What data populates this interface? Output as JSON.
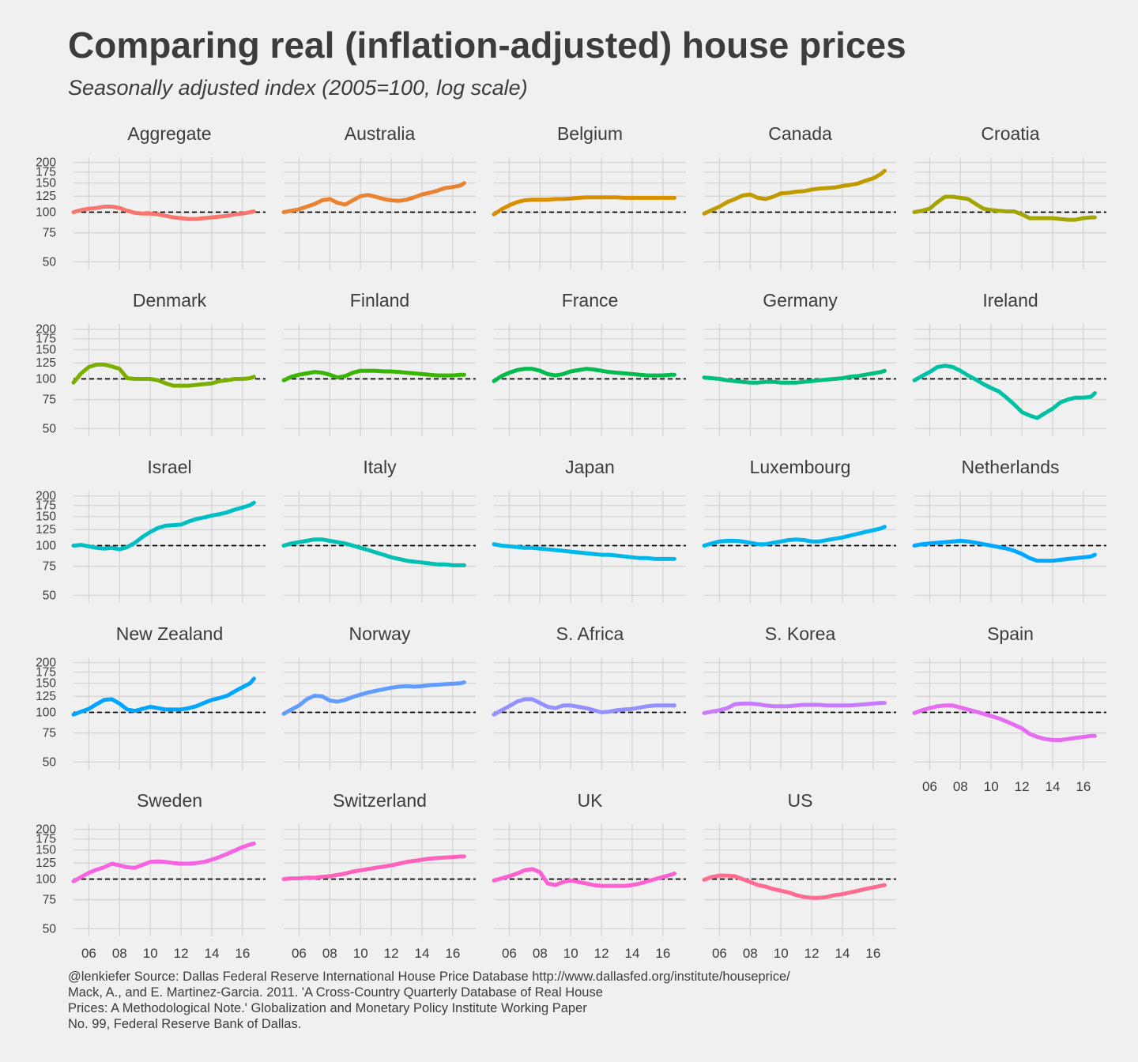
{
  "title": "Comparing real (inflation-adjusted) house prices",
  "subtitle": "Seasonally adjusted index (2005=100, log scale)",
  "caption_lines": [
    "@lenkiefer Source: Dallas Federal Reserve International House Price Database  http://www.dallasfed.org/institute/houseprice/",
    "Mack, A., and E. Martinez-Garcia. 2011. 'A Cross-Country Quarterly Database of Real House",
    "Prices: A Methodological Note.' Globalization and Monetary Policy Institute Working Paper",
    "No. 99, Federal Reserve Bank of Dallas."
  ],
  "colors": {
    "background": "#f0f0f0",
    "grid": "#d2d2d2",
    "text": "#3c3c3c",
    "reference_line": "#000000"
  },
  "chart_data": {
    "type": "line",
    "facet_layout": "5 columns x 5 rows",
    "y_scale": "log",
    "ylim": [
      45,
      215
    ],
    "y_ticks": [
      50,
      75,
      100,
      125,
      150,
      175,
      200
    ],
    "y_tick_labels": [
      "50",
      "75",
      "100",
      "125",
      "150",
      "175",
      "200"
    ],
    "xlim": [
      2005.0,
      2017.5
    ],
    "x_ticks": [
      2006,
      2008,
      2010,
      2012,
      2014,
      2016
    ],
    "x_tick_labels": [
      "06",
      "08",
      "10",
      "12",
      "14",
      "16"
    ],
    "reference_line": {
      "y": 100,
      "style": "dashed"
    },
    "grid": true,
    "x": [
      2005.0,
      2005.5,
      2006.0,
      2006.5,
      2007.0,
      2007.5,
      2008.0,
      2008.5,
      2009.0,
      2009.5,
      2010.0,
      2010.5,
      2011.0,
      2011.5,
      2012.0,
      2012.5,
      2013.0,
      2013.5,
      2014.0,
      2014.5,
      2015.0,
      2015.5,
      2016.0,
      2016.5,
      2016.75
    ],
    "series": [
      {
        "name": "Aggregate",
        "color": "#f8766d",
        "values": [
          100,
          103,
          105,
          106,
          108,
          108,
          106,
          102,
          99,
          98,
          98,
          97,
          95,
          93,
          92,
          91,
          91,
          92,
          93,
          94,
          95,
          97,
          98,
          100,
          101
        ]
      },
      {
        "name": "Australia",
        "color": "#ea8331",
        "values": [
          100,
          102,
          104,
          108,
          112,
          118,
          120,
          114,
          111,
          118,
          125,
          127,
          124,
          120,
          118,
          117,
          119,
          123,
          128,
          131,
          135,
          140,
          142,
          145,
          150
        ]
      },
      {
        "name": "Belgium",
        "color": "#d89000",
        "values": [
          97,
          104,
          110,
          115,
          118,
          119,
          119,
          119,
          120,
          120,
          121,
          122,
          123,
          123,
          123,
          123,
          123,
          122,
          122,
          122,
          122,
          122,
          122,
          122,
          122
        ]
      },
      {
        "name": "Canada",
        "color": "#c09b00",
        "values": [
          98,
          103,
          108,
          115,
          120,
          126,
          128,
          122,
          120,
          124,
          130,
          131,
          133,
          134,
          137,
          139,
          140,
          141,
          144,
          146,
          149,
          155,
          160,
          170,
          178
        ]
      },
      {
        "name": "Croatia",
        "color": "#a3a500",
        "values": [
          100,
          102,
          105,
          115,
          124,
          124,
          122,
          120,
          112,
          105,
          103,
          102,
          101,
          101,
          97,
          92,
          92,
          92,
          92,
          91,
          90,
          90,
          92,
          93,
          93
        ]
      },
      {
        "name": "Denmark",
        "color": "#7cae00",
        "values": [
          95,
          108,
          118,
          122,
          122,
          119,
          115,
          101,
          100,
          100,
          100,
          98,
          94,
          91,
          91,
          91,
          92,
          93,
          94,
          97,
          98,
          100,
          100,
          101,
          103
        ]
      },
      {
        "name": "Finland",
        "color": "#39b600",
        "values": [
          98,
          103,
          106,
          108,
          110,
          109,
          106,
          102,
          104,
          109,
          112,
          112,
          112,
          111,
          111,
          110,
          109,
          108,
          107,
          106,
          105,
          105,
          105,
          106,
          106
        ]
      },
      {
        "name": "France",
        "color": "#00bb4e",
        "values": [
          97,
          104,
          109,
          113,
          115,
          115,
          112,
          107,
          105,
          107,
          111,
          113,
          115,
          114,
          112,
          110,
          109,
          108,
          107,
          106,
          105,
          105,
          105,
          106,
          106
        ]
      },
      {
        "name": "Germany",
        "color": "#00bf7d",
        "values": [
          102,
          101,
          100,
          98,
          97,
          96,
          95,
          95,
          96,
          96,
          95,
          95,
          95,
          96,
          97,
          98,
          99,
          100,
          101,
          103,
          104,
          106,
          108,
          110,
          112
        ]
      },
      {
        "name": "Ireland",
        "color": "#00c1a3",
        "values": [
          98,
          104,
          110,
          118,
          120,
          118,
          112,
          105,
          99,
          93,
          88,
          84,
          77,
          70,
          63,
          60,
          58,
          62,
          66,
          72,
          75,
          77,
          77,
          78,
          82
        ]
      },
      {
        "name": "Israel",
        "color": "#00bfc4",
        "values": [
          100,
          101,
          99,
          97,
          96,
          97,
          95,
          98,
          104,
          113,
          121,
          128,
          132,
          133,
          134,
          140,
          145,
          148,
          152,
          155,
          159,
          165,
          170,
          176,
          182
        ]
      },
      {
        "name": "Italy",
        "color": "#00c0b3",
        "values": [
          100,
          103,
          105,
          107,
          109,
          109,
          107,
          105,
          103,
          100,
          97,
          94,
          91,
          88,
          85,
          83,
          81,
          80,
          79,
          78,
          77,
          77,
          76,
          76,
          76
        ]
      },
      {
        "name": "Japan",
        "color": "#00b8e7",
        "values": [
          102,
          100,
          99,
          98,
          97,
          97,
          96,
          95,
          94,
          93,
          92,
          91,
          90,
          89,
          88,
          88,
          87,
          86,
          85,
          84,
          84,
          83,
          83,
          83,
          83
        ]
      },
      {
        "name": "Luxembourg",
        "color": "#00b5ee",
        "values": [
          100,
          103,
          106,
          107,
          107,
          106,
          104,
          102,
          102,
          104,
          106,
          108,
          109,
          108,
          106,
          106,
          108,
          110,
          112,
          115,
          118,
          121,
          124,
          127,
          130
        ]
      },
      {
        "name": "Netherlands",
        "color": "#00a9ff",
        "values": [
          100,
          102,
          103,
          104,
          105,
          106,
          107,
          106,
          104,
          102,
          100,
          98,
          96,
          93,
          89,
          84,
          81,
          81,
          81,
          82,
          83,
          84,
          85,
          86,
          88
        ]
      },
      {
        "name": "New Zealand",
        "color": "#00a5ff",
        "values": [
          97,
          101,
          105,
          112,
          119,
          120,
          113,
          104,
          102,
          105,
          108,
          106,
          104,
          104,
          104,
          106,
          109,
          114,
          119,
          122,
          126,
          134,
          142,
          150,
          160
        ]
      },
      {
        "name": "Norway",
        "color": "#619cff",
        "values": [
          98,
          104,
          110,
          120,
          126,
          125,
          118,
          116,
          119,
          124,
          128,
          132,
          135,
          138,
          141,
          143,
          144,
          143,
          144,
          146,
          147,
          148,
          149,
          150,
          152
        ]
      },
      {
        "name": "S. Africa",
        "color": "#9590ff",
        "values": [
          97,
          103,
          109,
          116,
          120,
          120,
          114,
          108,
          106,
          110,
          110,
          108,
          106,
          103,
          100,
          101,
          103,
          104,
          105,
          107,
          109,
          110,
          110,
          110,
          110
        ]
      },
      {
        "name": "S. Korea",
        "color": "#c77cff",
        "values": [
          99,
          101,
          103,
          106,
          112,
          113,
          113,
          112,
          110,
          109,
          109,
          109,
          110,
          111,
          111,
          111,
          110,
          110,
          110,
          110,
          111,
          112,
          113,
          114,
          114
        ]
      },
      {
        "name": "Spain",
        "color": "#e76bf3",
        "values": [
          99,
          103,
          106,
          109,
          110,
          110,
          107,
          104,
          101,
          98,
          95,
          92,
          88,
          84,
          80,
          74,
          71,
          69,
          68,
          68,
          69,
          70,
          71,
          72,
          72
        ]
      },
      {
        "name": "Sweden",
        "color": "#f763e0",
        "values": [
          97,
          103,
          109,
          114,
          118,
          124,
          121,
          118,
          117,
          122,
          127,
          128,
          127,
          125,
          124,
          124,
          125,
          127,
          131,
          136,
          142,
          149,
          156,
          162,
          164
        ]
      },
      {
        "name": "Switzerland",
        "color": "#ff62bc",
        "values": [
          100,
          101,
          101,
          102,
          102,
          103,
          104,
          106,
          108,
          111,
          113,
          115,
          117,
          119,
          121,
          124,
          127,
          129,
          131,
          133,
          134,
          135,
          136,
          137,
          137
        ]
      },
      {
        "name": "UK",
        "color": "#fd61d1",
        "values": [
          98,
          101,
          104,
          108,
          113,
          115,
          110,
          94,
          92,
          96,
          98,
          96,
          94,
          92,
          91,
          91,
          91,
          91,
          92,
          94,
          97,
          100,
          103,
          106,
          108
        ]
      },
      {
        "name": "US",
        "color": "#ff6c91",
        "values": [
          99,
          103,
          105,
          105,
          104,
          100,
          96,
          92,
          90,
          87,
          85,
          83,
          80,
          78,
          77,
          77,
          78,
          80,
          81,
          83,
          85,
          87,
          89,
          91,
          92
        ]
      }
    ]
  }
}
